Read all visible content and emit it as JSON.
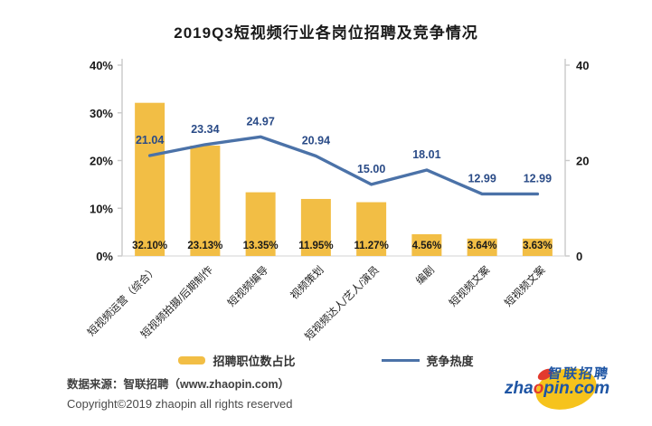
{
  "title": "2019Q3短视频行业各岗位招聘及竞争情况",
  "chart_data": {
    "type": "bar",
    "subtype": "bar+line combo",
    "title": "2019Q3短视频行业各岗位招聘及竞争情况",
    "categories": [
      "短视频运营（综合）",
      "短视频拍摄/后期制作",
      "短视频编导",
      "视频策划",
      "短视频达人/艺人/演员",
      "编剧",
      "短视频文案",
      "短视频文案"
    ],
    "series": [
      {
        "name": "招聘职位数占比",
        "type": "bar",
        "axis": "left",
        "values": [
          32.1,
          23.13,
          13.35,
          11.95,
          11.27,
          4.56,
          3.64,
          3.63
        ],
        "labels": [
          "32.10%",
          "23.13%",
          "13.35%",
          "11.95%",
          "11.27%",
          "4.56%",
          "3.64%",
          "3.63%"
        ],
        "color": "#F2BE45"
      },
      {
        "name": "竞争热度",
        "type": "line",
        "axis": "right",
        "values": [
          21.04,
          23.34,
          24.97,
          20.94,
          15.0,
          18.01,
          12.99,
          12.99
        ],
        "labels": [
          "21.04",
          "23.34",
          "24.97",
          "20.94",
          "15.00",
          "18.01",
          "12.99",
          "12.99"
        ],
        "color": "#4B72A8",
        "label_color": "#2A4B87"
      }
    ],
    "left_axis": {
      "min": 0,
      "max": 40,
      "ticks": [
        {
          "label": "0%",
          "value": 0
        },
        {
          "label": "10%",
          "value": 10
        },
        {
          "label": "20%",
          "value": 20
        },
        {
          "label": "30%",
          "value": 30
        },
        {
          "label": "40%",
          "value": 40
        }
      ]
    },
    "right_axis": {
      "min": 0,
      "max": 40,
      "ticks": [
        {
          "label": "0",
          "value": 0
        },
        {
          "label": "20",
          "value": 20
        },
        {
          "label": "40",
          "value": 40
        }
      ]
    },
    "grid": false,
    "legend_position": "bottom"
  },
  "legend": {
    "bar_label": "招聘职位数占比",
    "line_label": "竞争热度"
  },
  "footer": {
    "source": "数据来源：智联招聘（www.zhaopin.com）",
    "copyright": "Copyright©2019 zhaopin all rights reserved"
  },
  "logo": {
    "cn": "智联招聘",
    "en_pre": "zha",
    "en_o": "o",
    "en_post": "pin.com"
  },
  "colors": {
    "bar": "#F2BE45",
    "line": "#4B72A8",
    "line_label": "#2A4B87",
    "axis": "#C9C9C9",
    "text": "#1a1a1a"
  }
}
